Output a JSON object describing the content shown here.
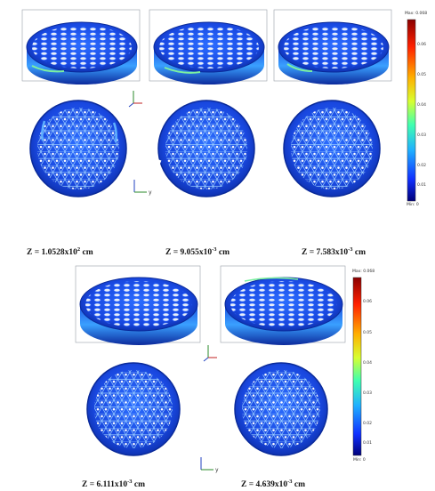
{
  "figure": {
    "top_row": {
      "captions": [
        {
          "prefix": "Z = 1.0528x10",
          "exp": "2",
          "unit": " cm"
        },
        {
          "prefix": "Z = 9.055x10",
          "exp": "-3",
          "unit": " cm"
        },
        {
          "prefix": "Z = 7.583x10",
          "exp": "-3",
          "unit": " cm"
        }
      ],
      "colorbar": {
        "max_label": "Max: 0.068",
        "min_label": "Min: 0",
        "ticks": [
          "0.06",
          "0.05",
          "0.04",
          "0.03",
          "0.02",
          "0.01"
        ]
      }
    },
    "bottom_row": {
      "captions": [
        {
          "prefix": "Z = 6.111x10",
          "exp": "-3",
          "unit": " cm"
        },
        {
          "prefix": "Z = 4.639x10",
          "exp": "-3",
          "unit": " cm"
        }
      ],
      "colorbar": {
        "max_label": "Max: 0.068",
        "min_label": "Min: 0",
        "ticks": [
          "0.06",
          "0.05",
          "0.04",
          "0.03",
          "0.02",
          "0.01"
        ]
      }
    },
    "axis_labels": {
      "x": "x",
      "y": "y",
      "z": "z"
    },
    "colors": {
      "field_dark": "#0a2a9a",
      "field_mid": "#1e5cff",
      "field_light": "#5fb0ff",
      "hot": "#7cf0a0"
    }
  }
}
